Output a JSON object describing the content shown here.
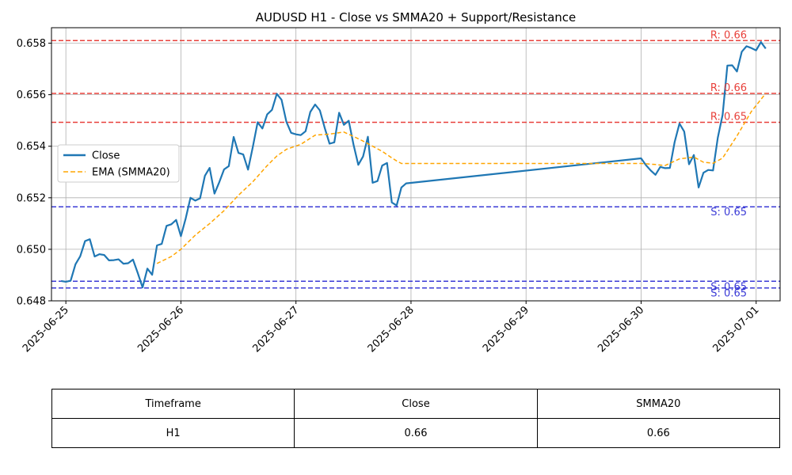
{
  "chart_data": {
    "type": "line",
    "title": "AUDUSD H1 - Close vs SMMA20 + Support/Resistance",
    "xlabel": "",
    "ylabel": "",
    "ylim": [
      0.648,
      0.6586
    ],
    "y_ticks": [
      "0.648",
      "0.650",
      "0.652",
      "0.654",
      "0.656",
      "0.658"
    ],
    "x_ticks": [
      "2025-06-25",
      "2025-06-26",
      "2025-06-27",
      "2025-06-28",
      "2025-06-29",
      "2025-06-30",
      "2025-07-01"
    ],
    "grid": true,
    "legend_position": "center-left",
    "series": [
      {
        "name": "Close",
        "color": "#1f77b4",
        "style": "solid",
        "x": [
          "2025-06-24 23:00",
          "2025-06-25 00:00",
          "2025-06-25 01:00",
          "2025-06-25 02:00",
          "2025-06-25 03:00",
          "2025-06-25 04:00",
          "2025-06-25 05:00",
          "2025-06-25 06:00",
          "2025-06-25 07:00",
          "2025-06-25 08:00",
          "2025-06-25 09:00",
          "2025-06-25 10:00",
          "2025-06-25 11:00",
          "2025-06-25 12:00",
          "2025-06-25 13:00",
          "2025-06-25 14:00",
          "2025-06-25 15:00",
          "2025-06-25 16:00",
          "2025-06-25 17:00",
          "2025-06-25 18:00",
          "2025-06-25 19:00",
          "2025-06-25 20:00",
          "2025-06-25 21:00",
          "2025-06-25 22:00",
          "2025-06-25 23:00",
          "2025-06-26 00:00",
          "2025-06-26 01:00",
          "2025-06-26 02:00",
          "2025-06-26 03:00",
          "2025-06-26 04:00",
          "2025-06-26 05:00",
          "2025-06-26 06:00",
          "2025-06-26 07:00",
          "2025-06-26 08:00",
          "2025-06-26 09:00",
          "2025-06-26 10:00",
          "2025-06-26 11:00",
          "2025-06-26 12:00",
          "2025-06-26 13:00",
          "2025-06-26 14:00",
          "2025-06-26 15:00",
          "2025-06-26 16:00",
          "2025-06-26 17:00",
          "2025-06-26 18:00",
          "2025-06-26 19:00",
          "2025-06-26 20:00",
          "2025-06-26 21:00",
          "2025-06-26 22:00",
          "2025-06-26 23:00",
          "2025-06-27 00:00",
          "2025-06-27 01:00",
          "2025-06-27 02:00",
          "2025-06-27 03:00",
          "2025-06-27 04:00",
          "2025-06-27 05:00",
          "2025-06-27 06:00",
          "2025-06-27 07:00",
          "2025-06-27 08:00",
          "2025-06-27 09:00",
          "2025-06-27 10:00",
          "2025-06-27 11:00",
          "2025-06-27 12:00",
          "2025-06-27 13:00",
          "2025-06-27 14:00",
          "2025-06-27 15:00",
          "2025-06-27 16:00",
          "2025-06-27 17:00",
          "2025-06-27 18:00",
          "2025-06-27 19:00",
          "2025-06-27 20:00",
          "2025-06-27 21:00",
          "2025-06-27 22:00",
          "2025-06-27 23:00",
          "2025-06-30 00:00",
          "2025-06-30 01:00",
          "2025-06-30 02:00",
          "2025-06-30 03:00",
          "2025-06-30 04:00",
          "2025-06-30 05:00",
          "2025-06-30 06:00",
          "2025-06-30 07:00",
          "2025-06-30 08:00",
          "2025-06-30 09:00",
          "2025-06-30 10:00",
          "2025-06-30 11:00",
          "2025-06-30 12:00",
          "2025-06-30 13:00",
          "2025-06-30 14:00",
          "2025-06-30 15:00",
          "2025-06-30 16:00",
          "2025-06-30 17:00",
          "2025-06-30 18:00",
          "2025-06-30 19:00",
          "2025-06-30 20:00",
          "2025-06-30 21:00",
          "2025-06-30 22:00",
          "2025-06-30 23:00",
          "2025-07-01 00:00",
          "2025-07-01 01:00",
          "2025-07-01 02:00"
        ],
        "values": [
          0.64877,
          0.64874,
          0.64878,
          0.64942,
          0.64973,
          0.65032,
          0.65039,
          0.64972,
          0.64981,
          0.64978,
          0.64957,
          0.64958,
          0.64961,
          0.64944,
          0.64946,
          0.6496,
          0.64908,
          0.64852,
          0.64925,
          0.64901,
          0.65015,
          0.65021,
          0.65091,
          0.65097,
          0.65114,
          0.65051,
          0.6512,
          0.652,
          0.65189,
          0.65198,
          0.65285,
          0.65316,
          0.65216,
          0.6526,
          0.6531,
          0.65323,
          0.65436,
          0.65374,
          0.65368,
          0.65309,
          0.65397,
          0.65493,
          0.65469,
          0.65524,
          0.65541,
          0.65603,
          0.6558,
          0.65495,
          0.65452,
          0.65446,
          0.65443,
          0.65458,
          0.65533,
          0.65562,
          0.65539,
          0.65471,
          0.6541,
          0.65415,
          0.6553,
          0.65483,
          0.65499,
          0.65407,
          0.65328,
          0.6536,
          0.65437,
          0.65258,
          0.65265,
          0.65325,
          0.65335,
          0.65182,
          0.6517,
          0.6524,
          0.65256,
          0.65353,
          0.65327,
          0.65306,
          0.65289,
          0.6532,
          0.65315,
          0.65316,
          0.65416,
          0.65488,
          0.65457,
          0.6533,
          0.65366,
          0.6524,
          0.65297,
          0.65308,
          0.65306,
          0.65433,
          0.65522,
          0.65713,
          0.65714,
          0.6569,
          0.65767,
          0.65788,
          0.65781,
          0.65772,
          0.65804,
          0.65779
        ]
      },
      {
        "name": "EMA (SMMA20)",
        "color": "#ffa500",
        "style": "dashed",
        "x": [
          "2025-06-25 19:00",
          "2025-06-25 22:00",
          "2025-06-26 00:00",
          "2025-06-26 03:00",
          "2025-06-26 06:00",
          "2025-06-26 09:00",
          "2025-06-26 12:00",
          "2025-06-26 15:00",
          "2025-06-26 18:00",
          "2025-06-26 20:00",
          "2025-06-26 22:00",
          "2025-06-27 01:00",
          "2025-06-27 04:00",
          "2025-06-27 07:00",
          "2025-06-27 10:00",
          "2025-06-27 12:00",
          "2025-06-27 14:00",
          "2025-06-27 16:00",
          "2025-06-27 18:00",
          "2025-06-27 20:00",
          "2025-06-27 21:00",
          "2025-06-27 22:00",
          "2025-06-27 23:00",
          "2025-06-30 00:00",
          "2025-06-30 03:00",
          "2025-06-30 05:00",
          "2025-06-30 08:00",
          "2025-06-30 11:00",
          "2025-06-30 13:00",
          "2025-06-30 15:00",
          "2025-06-30 17:00",
          "2025-06-30 20:00",
          "2025-06-30 23:00",
          "2025-07-01 02:00"
        ],
        "values": [
          0.64945,
          0.64972,
          0.65,
          0.65055,
          0.651,
          0.6515,
          0.6521,
          0.65262,
          0.65325,
          0.65362,
          0.65388,
          0.65407,
          0.65443,
          0.65447,
          0.65455,
          0.65438,
          0.6542,
          0.654,
          0.6538,
          0.65355,
          0.65343,
          0.65333,
          0.65333,
          0.65333,
          0.65329,
          0.65325,
          0.65351,
          0.65358,
          0.65338,
          0.65334,
          0.65354,
          0.6544,
          0.65535,
          0.65605
        ]
      }
    ],
    "levels": [
      {
        "kind": "resistance",
        "label": "R: 0.66",
        "value": 0.6581,
        "color": "#e8413b"
      },
      {
        "kind": "resistance",
        "label": "R: 0.66",
        "value": 0.65605,
        "color": "#e8413b"
      },
      {
        "kind": "resistance",
        "label": "R: 0.65",
        "value": 0.65493,
        "color": "#e8413b"
      },
      {
        "kind": "support",
        "label": "S: 0.65",
        "value": 0.65165,
        "color": "#3b3bd6"
      },
      {
        "kind": "support",
        "label": "S: 0.65",
        "value": 0.64876,
        "color": "#3b3bd6"
      },
      {
        "kind": "support",
        "label": "S: 0.65",
        "value": 0.6485,
        "color": "#3b3bd6"
      }
    ]
  },
  "table": {
    "headers": [
      "Timeframe",
      "Close",
      "SMMA20"
    ],
    "row": [
      "H1",
      "0.66",
      "0.66"
    ]
  }
}
